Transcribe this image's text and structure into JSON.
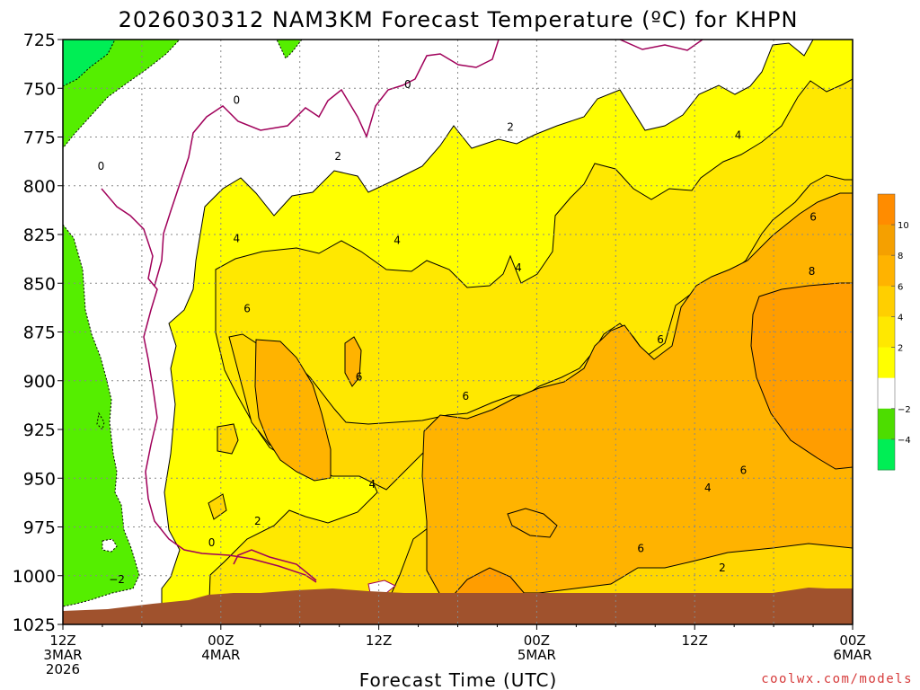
{
  "chart_data": {
    "type": "contour",
    "title": "2026030312 NAM3KM Forecast Temperature (ºC) for KHPN",
    "xlabel": "Forecast Time (UTC)",
    "ylabel": "",
    "credit": "coolwx.com/models",
    "x_range_hours": [
      0,
      60
    ],
    "y_range_hpa": [
      725,
      1025
    ],
    "grid": true,
    "x_ticks": [
      {
        "hour": 0,
        "lines": [
          "12Z",
          "3MAR",
          "2026"
        ]
      },
      {
        "hour": 12,
        "lines": [
          "00Z",
          "4MAR"
        ]
      },
      {
        "hour": 24,
        "lines": [
          "12Z"
        ]
      },
      {
        "hour": 36,
        "lines": [
          "00Z",
          "5MAR"
        ]
      },
      {
        "hour": 48,
        "lines": [
          "12Z"
        ]
      },
      {
        "hour": 60,
        "lines": [
          "00Z",
          "6MAR"
        ]
      }
    ],
    "y_ticks": [
      725,
      750,
      775,
      800,
      825,
      850,
      875,
      900,
      925,
      950,
      975,
      1000,
      1025
    ],
    "colorbar": {
      "bins": [
        {
          "min": 10,
          "max": 12,
          "color": "#ff8c00"
        },
        {
          "min": 8,
          "max": 10,
          "color": "#f5a000"
        },
        {
          "min": 6,
          "max": 8,
          "color": "#ffb300"
        },
        {
          "min": 4,
          "max": 6,
          "color": "#ffcf00"
        },
        {
          "min": 2,
          "max": 4,
          "color": "#ffe800"
        },
        {
          "min": 0,
          "max": 2,
          "color": "#ffff00"
        },
        {
          "min": -2,
          "max": 0,
          "color": "#ffffff"
        },
        {
          "min": -4,
          "max": -2,
          "color": "#4ddd00"
        },
        {
          "min": -6,
          "max": -4,
          "color": "#00ee55"
        }
      ],
      "labels": [
        "10",
        "8",
        "6",
        "4",
        "2",
        "−2",
        "−4"
      ]
    },
    "fill_colors": {
      "below_minus_4": "#00ee55",
      "minus_4_to_minus_2": "#55ee00",
      "minus_2_to_0": "#ffffff",
      "0_to_2": "#ffff00",
      "2_to_4": "#ffee00",
      "4_to_6": "#ffd700",
      "6_to_8": "#ffb300",
      "8_to_10": "#ff9d00",
      "terrain": "#a0522d"
    },
    "contour_labels": [
      {
        "text": "0",
        "hour": 13.2,
        "hpa": 756
      },
      {
        "text": "0",
        "hour": 26.2,
        "hpa": 748
      },
      {
        "text": "0",
        "hour": 2.9,
        "hpa": 790
      },
      {
        "text": "2",
        "hour": 20.9,
        "hpa": 785
      },
      {
        "text": "2",
        "hour": 34.0,
        "hpa": 770
      },
      {
        "text": "4",
        "hour": 13.2,
        "hpa": 827
      },
      {
        "text": "4",
        "hour": 25.4,
        "hpa": 828
      },
      {
        "text": "4",
        "hour": 34.6,
        "hpa": 842
      },
      {
        "text": "4",
        "hour": 51.3,
        "hpa": 774
      },
      {
        "text": "6",
        "hour": 14.0,
        "hpa": 863
      },
      {
        "text": "6",
        "hour": 22.5,
        "hpa": 898
      },
      {
        "text": "6",
        "hour": 30.6,
        "hpa": 908
      },
      {
        "text": "6",
        "hour": 45.4,
        "hpa": 879
      },
      {
        "text": "6",
        "hour": 57.0,
        "hpa": 816
      },
      {
        "text": "6",
        "hour": 51.7,
        "hpa": 946
      },
      {
        "text": "8",
        "hour": 56.9,
        "hpa": 844
      },
      {
        "text": "4",
        "hour": 23.5,
        "hpa": 953
      },
      {
        "text": "4",
        "hour": 49.0,
        "hpa": 955
      },
      {
        "text": "2",
        "hour": 14.8,
        "hpa": 972
      },
      {
        "text": "0",
        "hour": 11.3,
        "hpa": 983
      },
      {
        "text": "6",
        "hour": 43.9,
        "hpa": 986
      },
      {
        "text": "2",
        "hour": 50.1,
        "hpa": 996
      },
      {
        "text": "−2",
        "hour": 4.1,
        "hpa": 1002
      }
    ]
  }
}
